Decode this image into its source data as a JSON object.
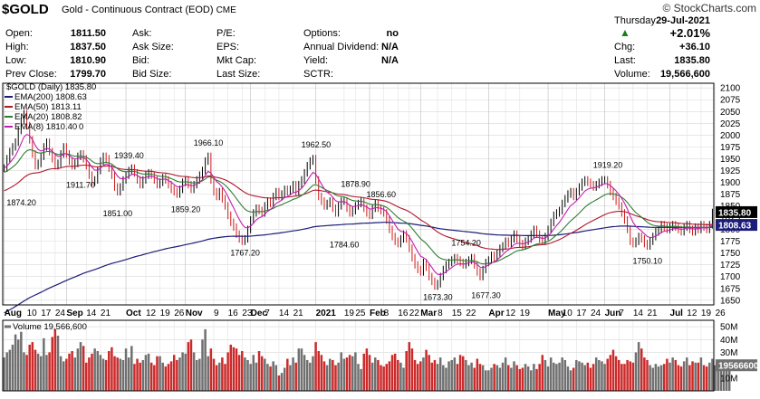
{
  "header": {
    "symbol": "$GOLD",
    "title": "Gold - Continuous Contract (EOD)",
    "exchange": "CME",
    "watermark": "© StockCharts.com",
    "day": "Thursday",
    "date": "29-Jul-2021",
    "pct_change": "+2.01%",
    "rows": [
      {
        "label": "Open:",
        "value": "1811.50"
      },
      {
        "label": "High:",
        "value": "1837.50"
      },
      {
        "label": "Low:",
        "value": "1810.90"
      },
      {
        "label": "Prev Close:",
        "value": "1799.70"
      }
    ],
    "col2": [
      {
        "label": "Ask:",
        "value": ""
      },
      {
        "label": "Ask Size:",
        "value": ""
      },
      {
        "label": "Bid:",
        "value": ""
      },
      {
        "label": "Bid Size:",
        "value": ""
      }
    ],
    "col3": [
      {
        "label": "P/E:",
        "value": ""
      },
      {
        "label": "EPS:",
        "value": ""
      },
      {
        "label": "Mkt Cap:",
        "value": ""
      },
      {
        "label": "Last Size:",
        "value": ""
      }
    ],
    "col4": [
      {
        "label": "Options:",
        "value": "no"
      },
      {
        "label": "Annual Dividend:",
        "value": "N/A"
      },
      {
        "label": "Yield:",
        "value": "N/A"
      },
      {
        "label": "SCTR:",
        "value": ""
      }
    ],
    "col5": [
      {
        "label": "Chg:",
        "value": "+36.10"
      },
      {
        "label": "Last:",
        "value": "1835.80"
      },
      {
        "label": "Volume:",
        "value": "19,566,600"
      }
    ],
    "up_color": "#1a7f1a"
  },
  "legend": {
    "main": "$GOLD (Daily) 1835.80",
    "items": [
      {
        "label": "EMA(200) 1808.63",
        "color": "#1c1c7a"
      },
      {
        "label": "EMA(50) 1813.11",
        "color": "#b0172b"
      },
      {
        "label": "EMA(20) 1808.82",
        "color": "#2e7d32"
      },
      {
        "label": "EMA(8) 1810.40",
        "color": "#c21fb0"
      }
    ],
    "overlap_text": "0",
    "volume": "Volume 19,566,600"
  },
  "chart_data": {
    "type": "line",
    "title": "$GOLD (Daily)",
    "y_ticks": [
      1650,
      1675,
      1700,
      1725,
      1750,
      1775,
      1800,
      1825,
      1850,
      1875,
      1900,
      1925,
      1950,
      1975,
      2000,
      2025,
      2050,
      2075,
      2100
    ],
    "ylim": [
      1640,
      2110
    ],
    "vol_ticks": [
      "50M",
      "40M",
      "30M",
      "20M",
      "10M"
    ],
    "vol_ylim": [
      0,
      55
    ],
    "last_price_tag": "1835.80",
    "ema200_tag": "1808.63",
    "volume_tag": "19566600",
    "x_labels": [
      {
        "t": "Aug",
        "bold": true,
        "i": 0
      },
      {
        "t": "10",
        "i": 8
      },
      {
        "t": "17",
        "i": 13
      },
      {
        "t": "24",
        "i": 18
      },
      {
        "t": "Sep",
        "bold": true,
        "i": 22
      },
      {
        "t": "14",
        "i": 29
      },
      {
        "t": "21",
        "i": 34
      },
      {
        "t": "Oct",
        "bold": true,
        "i": 43
      },
      {
        "t": "12",
        "i": 50
      },
      {
        "t": "19",
        "i": 55
      },
      {
        "t": "26",
        "i": 60
      },
      {
        "t": "Nov",
        "bold": true,
        "i": 64
      },
      {
        "t": "9",
        "i": 74
      },
      {
        "t": "16",
        "i": 79
      },
      {
        "t": "23",
        "i": 84
      },
      {
        "t": "Dec",
        "bold": true,
        "i": 87
      },
      {
        "t": "7",
        "i": 92
      },
      {
        "t": "14",
        "i": 97
      },
      {
        "t": "21",
        "i": 102
      },
      {
        "t": "2021",
        "bold": true,
        "i": 110
      },
      {
        "t": "19",
        "i": 120
      },
      {
        "t": "25",
        "i": 124
      },
      {
        "t": "Feb",
        "bold": true,
        "i": 129
      },
      {
        "t": "8",
        "i": 134
      },
      {
        "t": "16",
        "i": 139
      },
      {
        "t": "22",
        "i": 143
      },
      {
        "t": "Mar",
        "bold": true,
        "i": 147
      },
      {
        "t": "8",
        "i": 153
      },
      {
        "t": "15",
        "i": 158
      },
      {
        "t": "22",
        "i": 163
      },
      {
        "t": "Apr",
        "bold": true,
        "i": 171
      },
      {
        "t": "12",
        "i": 177
      },
      {
        "t": "19",
        "i": 182
      },
      {
        "t": "May",
        "bold": true,
        "i": 192
      },
      {
        "t": "10",
        "i": 197
      },
      {
        "t": "17",
        "i": 202
      },
      {
        "t": "24",
        "i": 207
      },
      {
        "t": "Jun",
        "bold": true,
        "i": 212
      },
      {
        "t": "7",
        "i": 217
      },
      {
        "t": "14",
        "i": 222
      },
      {
        "t": "21",
        "i": 227
      },
      {
        "t": "Jul",
        "bold": true,
        "i": 235
      },
      {
        "t": "12",
        "i": 241
      },
      {
        "t": "19",
        "i": 246
      },
      {
        "t": "26",
        "i": 251
      }
    ],
    "annotations": [
      {
        "t": "1874.20",
        "i": 6,
        "v": 1874.2,
        "pos": "below"
      },
      {
        "t": "1911.70",
        "i": 27,
        "v": 1911.7,
        "pos": "below"
      },
      {
        "t": "1939.40",
        "i": 44,
        "v": 1939.4,
        "pos": "above"
      },
      {
        "t": "1851.00",
        "i": 40,
        "v": 1851.0,
        "pos": "below"
      },
      {
        "t": "1859.20",
        "i": 64,
        "v": 1859.2,
        "pos": "below"
      },
      {
        "t": "1966.10",
        "i": 72,
        "v": 1966.1,
        "pos": "above"
      },
      {
        "t": "1767.20",
        "i": 85,
        "v": 1767.2,
        "pos": "below"
      },
      {
        "t": "1962.50",
        "i": 110,
        "v": 1962.5,
        "pos": "above"
      },
      {
        "t": "1878.90",
        "i": 124,
        "v": 1878.9,
        "pos": "above"
      },
      {
        "t": "1856.60",
        "i": 133,
        "v": 1856.6,
        "pos": "above"
      },
      {
        "t": "1784.60",
        "i": 120,
        "v": 1784.6,
        "pos": "below"
      },
      {
        "t": "1754.20",
        "i": 163,
        "v": 1754.2,
        "pos": "above"
      },
      {
        "t": "1673.30",
        "i": 153,
        "v": 1673.3,
        "pos": "below"
      },
      {
        "t": "1677.30",
        "i": 170,
        "v": 1677.3,
        "pos": "below"
      },
      {
        "t": "1919.20",
        "i": 213,
        "v": 1919.2,
        "pos": "above"
      },
      {
        "t": "1750.10",
        "i": 227,
        "v": 1750.1,
        "pos": "below"
      }
    ],
    "price_series": [
      1930,
      1950,
      1965,
      1975,
      1985,
      2010,
      2030,
      2045,
      2020,
      1990,
      1960,
      1935,
      1940,
      1955,
      1975,
      1985,
      1965,
      1950,
      1935,
      1940,
      1960,
      1975,
      1960,
      1945,
      1935,
      1940,
      1955,
      1960,
      1950,
      1935,
      1915,
      1900,
      1905,
      1925,
      1945,
      1955,
      1950,
      1930,
      1915,
      1890,
      1880,
      1890,
      1905,
      1915,
      1925,
      1930,
      1920,
      1905,
      1895,
      1905,
      1915,
      1920,
      1915,
      1905,
      1895,
      1900,
      1910,
      1905,
      1895,
      1885,
      1880,
      1875,
      1885,
      1900,
      1905,
      1895,
      1885,
      1895,
      1905,
      1915,
      1925,
      1945,
      1955,
      1905,
      1880,
      1870,
      1880,
      1865,
      1850,
      1830,
      1815,
      1805,
      1790,
      1780,
      1775,
      1780,
      1800,
      1820,
      1835,
      1845,
      1840,
      1835,
      1850,
      1860,
      1855,
      1870,
      1880,
      1870,
      1875,
      1885,
      1880,
      1885,
      1895,
      1880,
      1895,
      1905,
      1920,
      1935,
      1945,
      1950,
      1905,
      1870,
      1860,
      1850,
      1855,
      1860,
      1845,
      1835,
      1850,
      1860,
      1860,
      1845,
      1835,
      1840,
      1850,
      1855,
      1860,
      1845,
      1835,
      1830,
      1845,
      1855,
      1845,
      1840,
      1835,
      1820,
      1800,
      1785,
      1775,
      1770,
      1780,
      1790,
      1780,
      1760,
      1740,
      1725,
      1715,
      1710,
      1730,
      1720,
      1700,
      1690,
      1680,
      1685,
      1700,
      1715,
      1725,
      1730,
      1735,
      1740,
      1735,
      1730,
      1725,
      1730,
      1735,
      1740,
      1725,
      1710,
      1700,
      1715,
      1730,
      1735,
      1745,
      1740,
      1750,
      1760,
      1765,
      1775,
      1770,
      1780,
      1790,
      1780,
      1770,
      1765,
      1775,
      1780,
      1790,
      1800,
      1790,
      1780,
      1775,
      1785,
      1800,
      1815,
      1830,
      1835,
      1840,
      1855,
      1865,
      1875,
      1880,
      1870,
      1880,
      1890,
      1900,
      1905,
      1900,
      1895,
      1890,
      1895,
      1900,
      1905,
      1905,
      1895,
      1880,
      1870,
      1860,
      1850,
      1835,
      1820,
      1800,
      1775,
      1770,
      1775,
      1785,
      1780,
      1770,
      1765,
      1775,
      1785,
      1795,
      1800,
      1810,
      1805,
      1800,
      1805,
      1810,
      1805,
      1800,
      1795,
      1805,
      1810,
      1800,
      1795,
      1805,
      1800,
      1810,
      1805,
      1800,
      1810,
      1835.8
    ],
    "volume_series": [
      26,
      30,
      32,
      36,
      44,
      40,
      46,
      30,
      28,
      36,
      38,
      32,
      29,
      27,
      41,
      28,
      30,
      42,
      48,
      43,
      27,
      23,
      25,
      29,
      31,
      26,
      33,
      38,
      35,
      22,
      26,
      29,
      33,
      31,
      28,
      25,
      24,
      31,
      34,
      27,
      26,
      25,
      24,
      33,
      26,
      35,
      21,
      25,
      22,
      24,
      28,
      29,
      22,
      20,
      27,
      27,
      22,
      19,
      21,
      23,
      28,
      24,
      26,
      30,
      29,
      38,
      40,
      30,
      24,
      25,
      40,
      48,
      27,
      33,
      25,
      20,
      22,
      26,
      21,
      30,
      36,
      34,
      33,
      28,
      31,
      26,
      24,
      21,
      28,
      22,
      31,
      27,
      25,
      21,
      19,
      23,
      20,
      12,
      14,
      18,
      25,
      20,
      26,
      22,
      33,
      33,
      28,
      24,
      22,
      27,
      38,
      31,
      28,
      23,
      20,
      25,
      24,
      20,
      22,
      30,
      25,
      26,
      28,
      27,
      30,
      21,
      17,
      29,
      33,
      28,
      22,
      26,
      24,
      20,
      19,
      21,
      23,
      28,
      29,
      24,
      22,
      18,
      31,
      38,
      33,
      24,
      21,
      23,
      26,
      32,
      28,
      22,
      24,
      21,
      26,
      20,
      18,
      23,
      24,
      26,
      21,
      28,
      27,
      24,
      20,
      22,
      18,
      25,
      21,
      20,
      16,
      16,
      18,
      21,
      20,
      18,
      22,
      26,
      20,
      18,
      23,
      20,
      17,
      18,
      21,
      19,
      16,
      21,
      17,
      21,
      28,
      24,
      19,
      26,
      22,
      21,
      22,
      26,
      24,
      19,
      16,
      18,
      24,
      23,
      22,
      20,
      22,
      18,
      21,
      26,
      24,
      23,
      21,
      25,
      28,
      32,
      27,
      24,
      21,
      21,
      24,
      23,
      22,
      30,
      38,
      33,
      26,
      24,
      20,
      18,
      21,
      19,
      20,
      21,
      25,
      22,
      26,
      24,
      20,
      19,
      23,
      26,
      20,
      23,
      22,
      22,
      26,
      20,
      19,
      22,
      25,
      20,
      21,
      22,
      19,
      21,
      19.6
    ],
    "ema_color_200": "#1c1c7a",
    "ema_color_50": "#b0172b",
    "ema_color_20": "#2e7d32",
    "ema_color_8": "#c21fb0",
    "price_color": "#000000",
    "candle_red": "#cc1a1a",
    "vol_up": "#707070",
    "vol_down": "#cc2a2a"
  }
}
